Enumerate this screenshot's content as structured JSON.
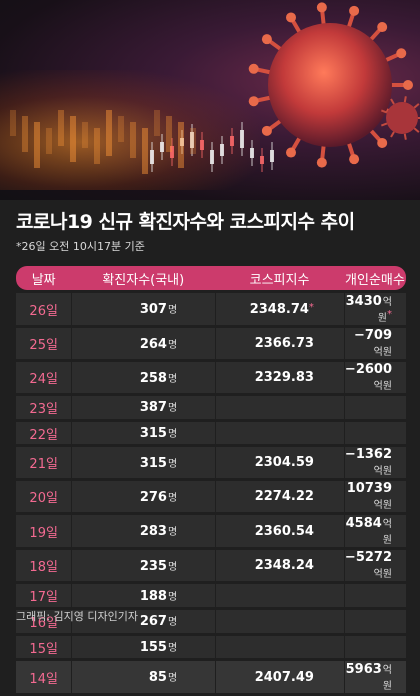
{
  "title": "코로나19 신규 확진자수와 코스피지수 추이",
  "note": "*26일 오전 10시17분 기준",
  "credit": "그래픽: 김지영 디자인기자",
  "units": {
    "cases": "명",
    "individual": "억원"
  },
  "colors": {
    "accent": "#cc3b6c",
    "date_text": "#f36a91",
    "row_bg": "#2d2d2d",
    "background": "#1f1f1f"
  },
  "chart_data": {
    "type": "table",
    "columns": [
      "날짜",
      "확진자수(국내)",
      "코스피지수",
      "개인순매수"
    ],
    "rows": [
      {
        "date": "26일",
        "cases": "307",
        "kospi": "2348.74",
        "kospi_star": "*",
        "individual": "3430",
        "individual_star": "*"
      },
      {
        "date": "25일",
        "cases": "264",
        "kospi": "2366.73",
        "individual": "−709"
      },
      {
        "date": "24일",
        "cases": "258",
        "kospi": "2329.83",
        "individual": "−2600"
      },
      {
        "date": "23일",
        "cases": "387"
      },
      {
        "date": "22일",
        "cases": "315"
      },
      {
        "date": "21일",
        "cases": "315",
        "kospi": "2304.59",
        "individual": "−1362"
      },
      {
        "date": "20일",
        "cases": "276",
        "kospi": "2274.22",
        "individual": "10739"
      },
      {
        "date": "19일",
        "cases": "283",
        "kospi": "2360.54",
        "individual": "4584"
      },
      {
        "date": "18일",
        "cases": "235",
        "kospi": "2348.24",
        "individual": "−5272"
      },
      {
        "date": "17일",
        "cases": "188"
      },
      {
        "date": "16일",
        "cases": "267"
      },
      {
        "date": "15일",
        "cases": "155"
      },
      {
        "date": "14일",
        "cases": "85",
        "kospi": "2407.49",
        "individual": "5963"
      }
    ]
  }
}
